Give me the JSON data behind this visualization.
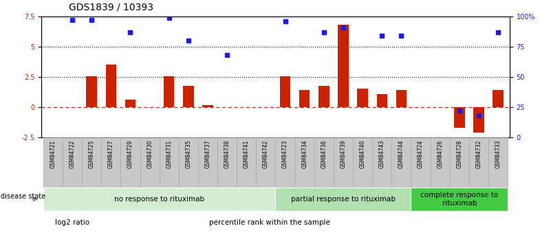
{
  "title": "GDS1839 / 10393",
  "samples": [
    "GSM84721",
    "GSM84722",
    "GSM84725",
    "GSM84727",
    "GSM84729",
    "GSM84730",
    "GSM84731",
    "GSM84735",
    "GSM84737",
    "GSM84738",
    "GSM84741",
    "GSM84742",
    "GSM84723",
    "GSM84734",
    "GSM84736",
    "GSM84739",
    "GSM84740",
    "GSM84743",
    "GSM84744",
    "GSM84724",
    "GSM84726",
    "GSM84728",
    "GSM84732",
    "GSM84733"
  ],
  "log2_ratio": [
    0.0,
    0.0,
    2.55,
    3.55,
    0.65,
    0.0,
    2.55,
    1.75,
    0.15,
    0.0,
    0.0,
    0.0,
    2.55,
    1.45,
    1.75,
    6.85,
    1.55,
    1.1,
    1.45,
    0.0,
    0.0,
    -1.7,
    -2.1,
    1.45
  ],
  "percentile_pct": [
    null,
    97,
    97,
    null,
    87,
    null,
    99,
    80,
    null,
    68,
    null,
    null,
    96,
    null,
    87,
    91,
    null,
    84,
    84,
    null,
    null,
    22,
    18,
    87
  ],
  "groups": [
    {
      "label": "no response to rituximab",
      "start": 0,
      "end": 11,
      "color": "#d4ecd4"
    },
    {
      "label": "partial response to rituximab",
      "start": 12,
      "end": 18,
      "color": "#b0e0b0"
    },
    {
      "label": "complete response to\nrituximab",
      "start": 19,
      "end": 23,
      "color": "#44cc44"
    }
  ],
  "bar_color": "#cc2200",
  "point_color": "#1a1af0",
  "ylim_left": [
    -2.5,
    7.5
  ],
  "ylim_right": [
    0,
    100
  ],
  "yticks_left": [
    -2.5,
    0,
    2.5,
    5,
    7.5
  ],
  "yticks_right": [
    0,
    25,
    50,
    75,
    100
  ],
  "legend_items": [
    {
      "label": "log2 ratio",
      "color": "#cc2200",
      "marker": "s"
    },
    {
      "label": "percentile rank within the sample",
      "color": "#1a1af0",
      "marker": "s"
    }
  ],
  "title_fontsize": 10,
  "tick_fontsize": 7,
  "sample_fontsize": 5.5,
  "group_fontsize": 7.5,
  "legend_fontsize": 7.5,
  "bar_width": 0.55,
  "label_box_color": "#c8c8c8",
  "label_box_edge": "#a0a0a0"
}
